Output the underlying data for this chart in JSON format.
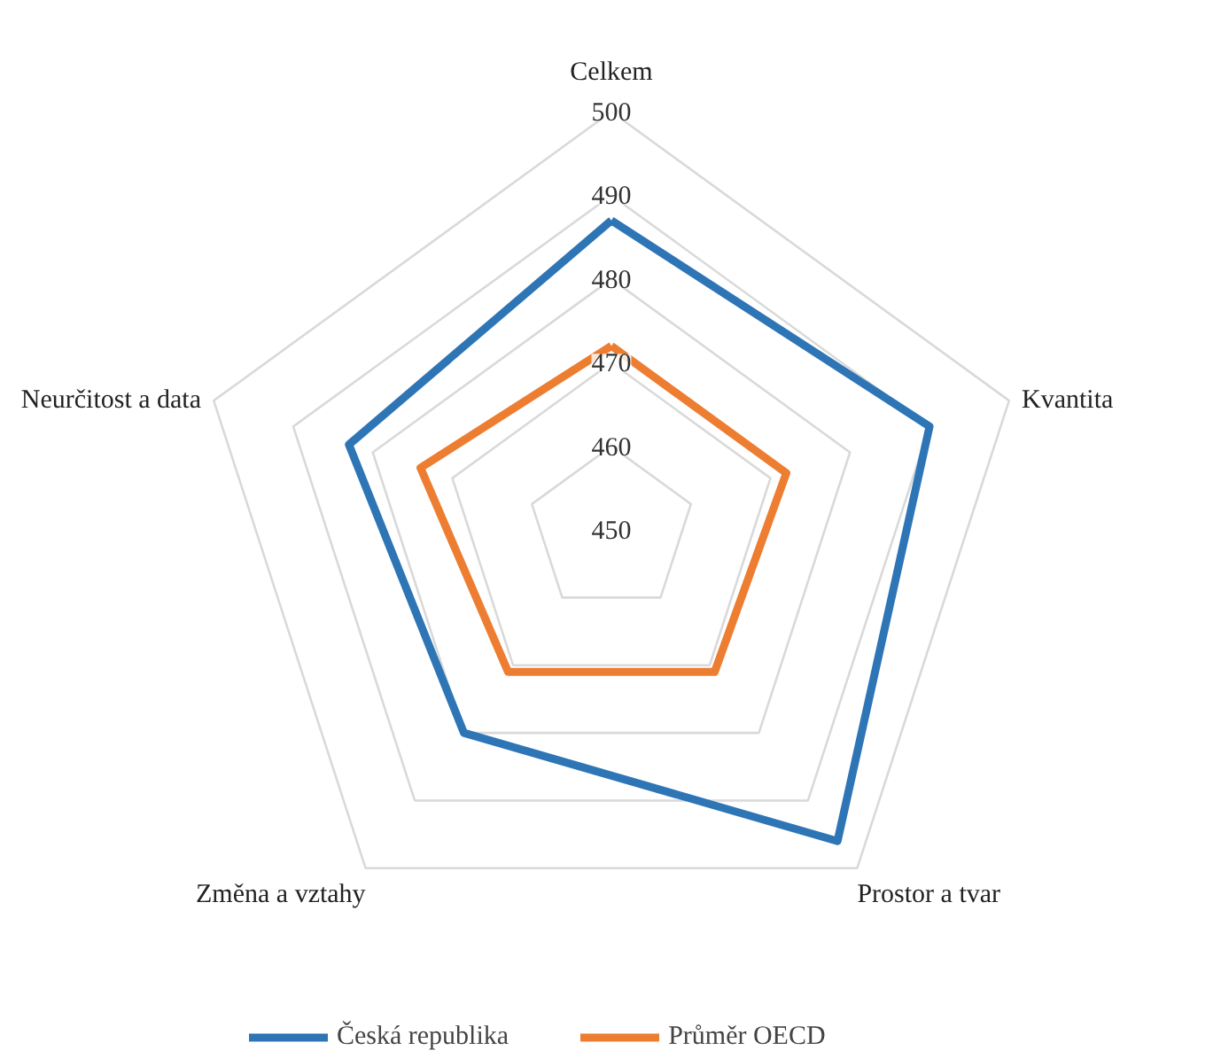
{
  "chart_data": {
    "type": "radar",
    "categories": [
      "Celkem",
      "Kvantita",
      "Prostor a tvar",
      "Změna a vztahy",
      "Neurčitost a data"
    ],
    "ylim": [
      450,
      500
    ],
    "yticks": [
      450,
      460,
      470,
      480,
      490,
      500
    ],
    "grid": true,
    "legend": "bottom",
    "series": [
      {
        "name": "Česká republika",
        "color": "#2e75b6",
        "values": [
          487,
          490,
          496,
          480,
          483
        ]
      },
      {
        "name": "Průměr OECD",
        "color": "#ed7d31",
        "values": [
          472,
          472,
          471,
          471,
          474
        ]
      }
    ]
  }
}
